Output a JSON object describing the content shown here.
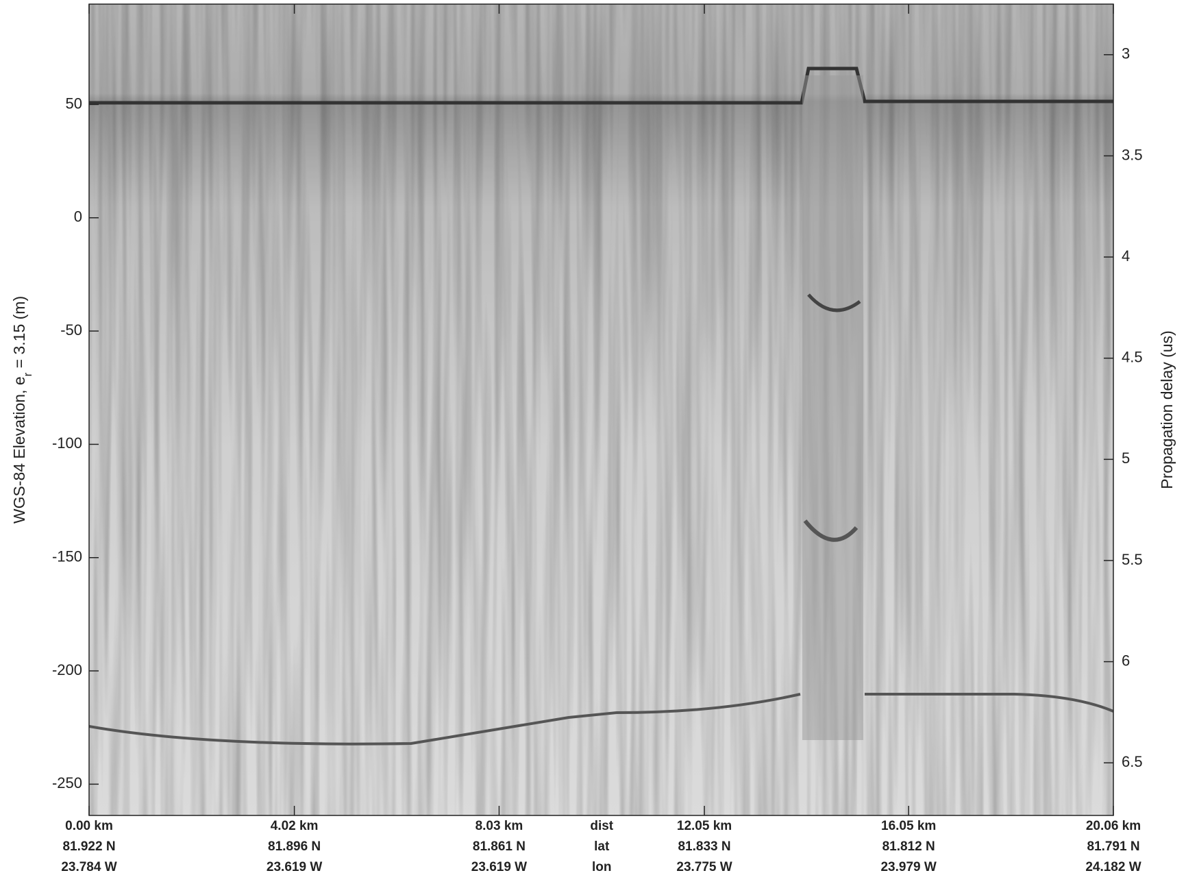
{
  "chart_data": {
    "type": "radargram",
    "ylabel": {
      "text": "WGS-84 Elevation, e",
      "subscript": "r",
      "rest": " = 3.15 (m)"
    },
    "y2label": "Propagation delay (us)",
    "ylim": [
      -263.8,
      94.3
    ],
    "yticks": [
      50,
      0,
      -50,
      -100,
      -150,
      -200,
      -250
    ],
    "y2lim": [
      6.76,
      2.75
    ],
    "y2ticks": [
      3,
      3.5,
      4,
      4.5,
      5,
      5.5,
      6,
      6.5
    ],
    "xlim": [
      0,
      20.06
    ],
    "xticks": [
      {
        "value": 0,
        "label": "0.00 km"
      },
      {
        "value": 4.02,
        "label": "4.02 km"
      },
      {
        "value": 8.03,
        "label": "8.03 km"
      },
      {
        "value": 12.05,
        "label": "12.05 km"
      },
      {
        "value": 16.05,
        "label": "16.05 km"
      },
      {
        "value": 20.06,
        "label": "20.06 km"
      }
    ],
    "lat_labels": [
      "81.922 N",
      "81.896 N",
      "81.861 N",
      "81.833 N",
      "81.812 N",
      "81.791 N"
    ],
    "lon_labels": [
      "23.784 W",
      "23.619 W",
      "23.619 W",
      "23.775 W",
      "23.979 W",
      "24.182 W"
    ],
    "row_labels": [
      "dist",
      "lat",
      "lon"
    ]
  }
}
